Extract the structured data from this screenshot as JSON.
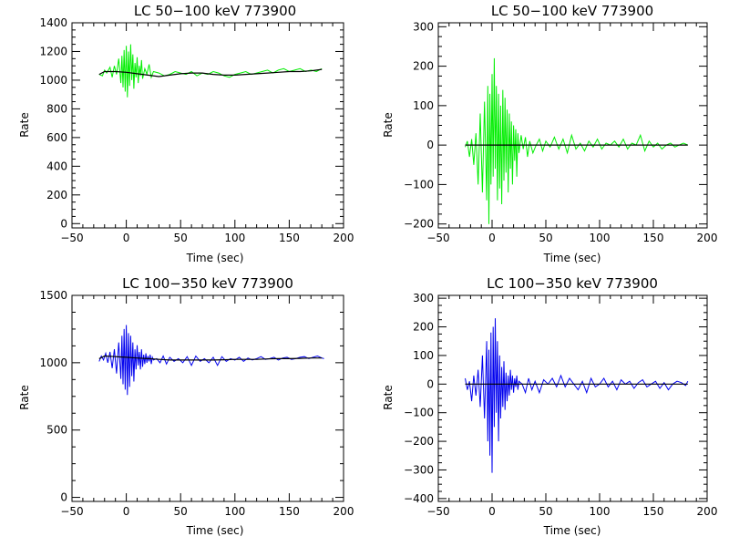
{
  "chart_data": [
    {
      "type": "line",
      "title": "LC 50−100 keV  773900",
      "xlabel": "Time (sec)",
      "ylabel": "Rate",
      "xlim": [
        -50,
        200
      ],
      "ylim": [
        -30,
        1400
      ],
      "x_ticks": [
        "−50",
        "0",
        "50",
        "100",
        "150",
        "200"
      ],
      "y_ticks": [
        "0",
        "200",
        "400",
        "600",
        "800",
        "1000",
        "1200",
        "1400"
      ],
      "x_tick_values": [
        -50,
        0,
        50,
        100,
        150,
        200
      ],
      "y_tick_values": [
        0,
        200,
        400,
        600,
        800,
        1000,
        1200,
        1400
      ],
      "series": [
        {
          "color": "#00ee00",
          "x": [
            -25,
            -22,
            -20,
            -18,
            -15,
            -13,
            -11,
            -9,
            -7,
            -5,
            -4,
            -3,
            -2,
            -1,
            0,
            1,
            2,
            3,
            4,
            5,
            6,
            7,
            8,
            9,
            10,
            11,
            12,
            13,
            14,
            15,
            17,
            19,
            21,
            23,
            25,
            30,
            35,
            40,
            45,
            50,
            55,
            60,
            65,
            70,
            75,
            80,
            85,
            90,
            95,
            100,
            105,
            110,
            115,
            120,
            125,
            130,
            135,
            140,
            145,
            150,
            155,
            160,
            165,
            170,
            175,
            180
          ],
          "y": [
            1040,
            1030,
            1070,
            1050,
            1090,
            1020,
            1100,
            1040,
            1150,
            980,
            1170,
            950,
            1210,
            920,
            1240,
            880,
            1200,
            960,
            1250,
            1000,
            1180,
            940,
            1120,
            1020,
            1160,
            980,
            1100,
            1030,
            1140,
            1010,
            1080,
            1040,
            1110,
            1020,
            1060,
            1050,
            1030,
            1040,
            1060,
            1050,
            1040,
            1060,
            1030,
            1050,
            1040,
            1060,
            1050,
            1030,
            1020,
            1040,
            1050,
            1060,
            1040,
            1050,
            1060,
            1070,
            1050,
            1070,
            1080,
            1060,
            1070,
            1080,
            1060,
            1070,
            1060,
            1080
          ]
        },
        {
          "color": "#000000",
          "x": [
            -25,
            -20,
            -10,
            0,
            10,
            20,
            30,
            40,
            50,
            60,
            70,
            80,
            90,
            100,
            110,
            120,
            130,
            140,
            150,
            160,
            170,
            180
          ],
          "y": [
            1040,
            1060,
            1060,
            1055,
            1045,
            1035,
            1025,
            1035,
            1045,
            1050,
            1050,
            1040,
            1035,
            1035,
            1040,
            1045,
            1050,
            1055,
            1060,
            1060,
            1065,
            1075
          ]
        }
      ]
    },
    {
      "type": "line",
      "title": "LC 50−100 keV  773900",
      "xlabel": "Time (sec)",
      "ylabel": "Rate",
      "xlim": [
        -50,
        200
      ],
      "ylim": [
        -210,
        310
      ],
      "x_ticks": [
        "−50",
        "0",
        "50",
        "100",
        "150",
        "200"
      ],
      "y_ticks": [
        "−200",
        "−100",
        "0",
        "100",
        "200",
        "300"
      ],
      "x_tick_values": [
        -50,
        0,
        50,
        100,
        150,
        200
      ],
      "y_tick_values": [
        -200,
        -100,
        0,
        100,
        200,
        300
      ],
      "series": [
        {
          "color": "#00ee00",
          "x": [
            -25,
            -23,
            -21,
            -19,
            -17,
            -15,
            -13,
            -11,
            -9,
            -7,
            -5,
            -4,
            -3,
            -2,
            -1,
            0,
            1,
            2,
            3,
            4,
            5,
            6,
            7,
            8,
            9,
            10,
            11,
            12,
            13,
            14,
            15,
            16,
            17,
            18,
            19,
            20,
            21,
            22,
            23,
            24,
            25,
            27,
            29,
            31,
            33,
            35,
            38,
            41,
            44,
            47,
            50,
            54,
            58,
            62,
            66,
            70,
            74,
            78,
            82,
            86,
            90,
            94,
            98,
            102,
            106,
            110,
            114,
            118,
            122,
            126,
            130,
            134,
            138,
            142,
            146,
            150,
            154,
            158,
            162,
            166,
            170,
            174,
            178,
            182
          ],
          "y": [
            -5,
            10,
            -30,
            15,
            -50,
            30,
            -100,
            80,
            -120,
            110,
            -140,
            150,
            -200,
            130,
            -100,
            180,
            -80,
            220,
            -60,
            150,
            -140,
            130,
            -110,
            100,
            -150,
            140,
            -90,
            120,
            -70,
            90,
            -120,
            80,
            -60,
            60,
            -100,
            50,
            -40,
            40,
            -80,
            30,
            -20,
            25,
            -10,
            20,
            -30,
            10,
            -20,
            0,
            15,
            -15,
            10,
            -5,
            20,
            -10,
            15,
            -20,
            25,
            -10,
            5,
            -15,
            10,
            -5,
            15,
            -10,
            5,
            0,
            10,
            -5,
            15,
            -10,
            5,
            0,
            25,
            -15,
            10,
            -5,
            5,
            -10,
            0,
            5,
            -5,
            0,
            5,
            0
          ]
        },
        {
          "color": "#000000",
          "x": [
            -25,
            182
          ],
          "y": [
            0,
            0
          ]
        }
      ]
    },
    {
      "type": "line",
      "title": "LC 100−350 keV  773900",
      "xlabel": "Time (sec)",
      "ylabel": "Rate",
      "xlim": [
        -50,
        200
      ],
      "ylim": [
        -30,
        1500
      ],
      "x_ticks": [
        "−50",
        "0",
        "50",
        "100",
        "150",
        "200"
      ],
      "y_ticks": [
        "0",
        "500",
        "1000",
        "1500"
      ],
      "x_tick_values": [
        -50,
        0,
        50,
        100,
        150,
        200
      ],
      "y_tick_values": [
        0,
        500,
        1000,
        1500
      ],
      "series": [
        {
          "color": "#0000ee",
          "x": [
            -25,
            -23,
            -21,
            -19,
            -17,
            -15,
            -13,
            -11,
            -9,
            -7,
            -5,
            -4,
            -3,
            -2,
            -1,
            0,
            1,
            2,
            3,
            4,
            5,
            6,
            7,
            8,
            9,
            10,
            11,
            12,
            13,
            14,
            15,
            16,
            17,
            18,
            19,
            20,
            21,
            22,
            23,
            24,
            25,
            28,
            31,
            34,
            37,
            40,
            44,
            48,
            52,
            56,
            60,
            64,
            68,
            72,
            76,
            80,
            84,
            88,
            92,
            96,
            100,
            104,
            108,
            112,
            116,
            120,
            124,
            128,
            132,
            136,
            140,
            144,
            148,
            152,
            156,
            160,
            164,
            168,
            172,
            176,
            180,
            182
          ],
          "y": [
            1010,
            1050,
            1020,
            1070,
            1000,
            1080,
            960,
            1100,
            920,
            1150,
            880,
            1200,
            840,
            1250,
            800,
            1280,
            760,
            1220,
            820,
            1200,
            900,
            1150,
            860,
            1100,
            950,
            1130,
            980,
            1080,
            950,
            1100,
            970,
            1060,
            990,
            1070,
            1000,
            1050,
            1010,
            1060,
            990,
            1040,
            1020,
            1030,
            1000,
            1050,
            990,
            1040,
            1010,
            1030,
            1000,
            1045,
            980,
            1050,
            1010,
            1030,
            1000,
            1040,
            980,
            1045,
            1010,
            1030,
            1020,
            1040,
            1010,
            1035,
            1020,
            1030,
            1045,
            1025,
            1030,
            1040,
            1020,
            1035,
            1040,
            1025,
            1030,
            1040,
            1045,
            1030,
            1040,
            1050,
            1035,
            1030
          ]
        },
        {
          "color": "#000000",
          "x": [
            -25,
            -20,
            -10,
            0,
            10,
            20,
            30,
            40,
            50,
            60,
            70,
            80,
            90,
            100,
            110,
            120,
            130,
            140,
            150,
            160,
            170,
            180
          ],
          "y": [
            1030,
            1050,
            1045,
            1040,
            1035,
            1030,
            1025,
            1020,
            1020,
            1020,
            1020,
            1020,
            1022,
            1025,
            1025,
            1025,
            1028,
            1030,
            1030,
            1032,
            1035,
            1035
          ]
        }
      ]
    },
    {
      "type": "line",
      "title": "LC 100−350 keV  773900",
      "xlabel": "Time (sec)",
      "ylabel": "Rate",
      "xlim": [
        -50,
        200
      ],
      "ylim": [
        -410,
        310
      ],
      "x_ticks": [
        "−50",
        "0",
        "50",
        "100",
        "150",
        "200"
      ],
      "y_ticks": [
        "−400",
        "−300",
        "−200",
        "−100",
        "0",
        "100",
        "200",
        "300"
      ],
      "x_tick_values": [
        -50,
        0,
        50,
        100,
        150,
        200
      ],
      "y_tick_values": [
        -400,
        -300,
        -200,
        -100,
        0,
        100,
        200,
        300
      ],
      "series": [
        {
          "color": "#0000ee",
          "x": [
            -25,
            -23,
            -21,
            -19,
            -17,
            -15,
            -13,
            -11,
            -9,
            -7,
            -5,
            -4,
            -3,
            -2,
            -1,
            0,
            1,
            2,
            3,
            4,
            5,
            6,
            7,
            8,
            9,
            10,
            11,
            12,
            13,
            14,
            15,
            16,
            17,
            18,
            19,
            20,
            21,
            22,
            23,
            24,
            25,
            28,
            31,
            34,
            37,
            40,
            44,
            48,
            52,
            56,
            60,
            64,
            68,
            72,
            76,
            80,
            84,
            88,
            92,
            96,
            100,
            104,
            108,
            112,
            116,
            120,
            124,
            128,
            132,
            136,
            140,
            144,
            148,
            152,
            156,
            160,
            164,
            168,
            172,
            176,
            180,
            182
          ],
          "y": [
            20,
            -20,
            10,
            -60,
            30,
            -40,
            50,
            -80,
            100,
            -120,
            150,
            -200,
            120,
            -250,
            180,
            -310,
            200,
            -150,
            230,
            -100,
            150,
            -200,
            100,
            -120,
            60,
            -80,
            80,
            -90,
            40,
            -60,
            30,
            -40,
            50,
            -20,
            30,
            -30,
            20,
            -10,
            30,
            -20,
            10,
            0,
            -30,
            20,
            -20,
            10,
            -30,
            15,
            0,
            20,
            -10,
            30,
            -10,
            20,
            0,
            -20,
            10,
            -30,
            20,
            -10,
            0,
            20,
            -10,
            10,
            -20,
            15,
            0,
            10,
            -15,
            5,
            15,
            -10,
            0,
            10,
            -15,
            5,
            -20,
            0,
            10,
            5,
            -5,
            10
          ]
        },
        {
          "color": "#000000",
          "x": [
            -25,
            182
          ],
          "y": [
            0,
            0
          ]
        }
      ]
    }
  ]
}
